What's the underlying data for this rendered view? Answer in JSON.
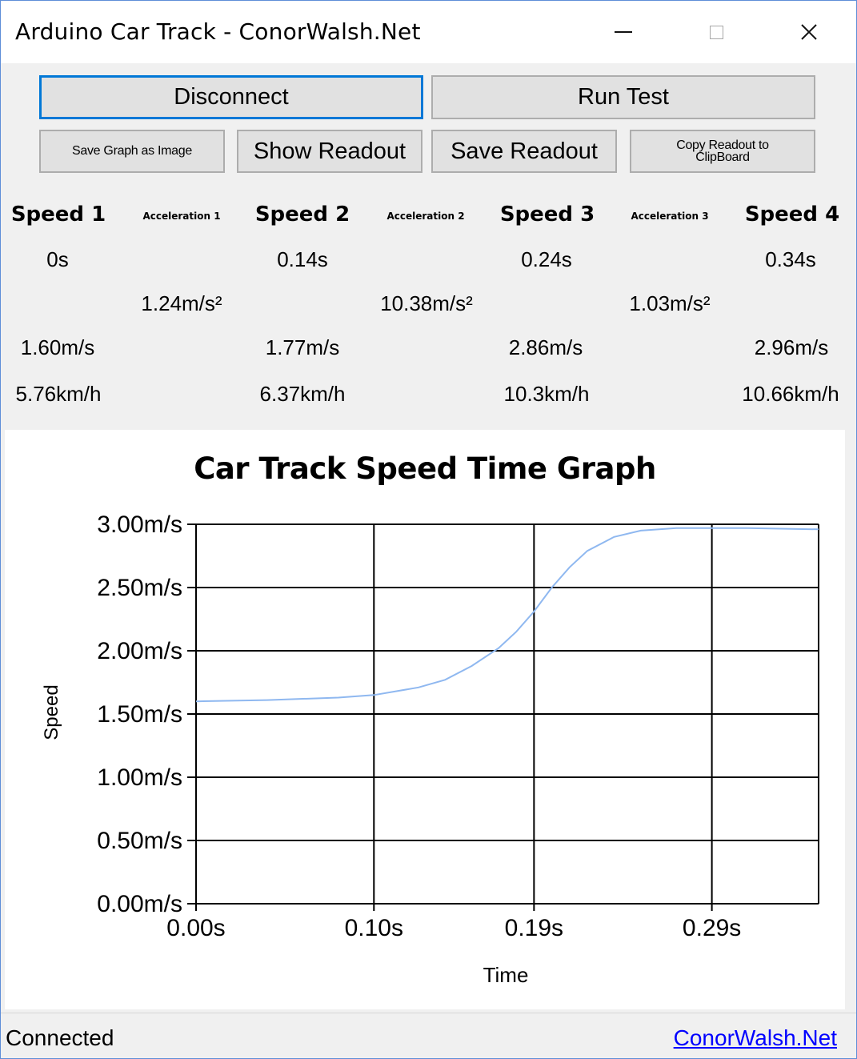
{
  "window": {
    "title": "Arduino Car Track - ConorWalsh.Net"
  },
  "buttons": {
    "disconnect": "Disconnect",
    "run_test": "Run Test",
    "save_graph": "Save Graph as Image",
    "show_readout": "Show Readout",
    "save_readout": "Save Readout",
    "copy_readout": "Copy Readout to ClipBoard"
  },
  "readout": {
    "speeds": [
      {
        "header": "Speed 1",
        "time": "0s",
        "ms": "1.60m/s",
        "kmh": "5.76km/h"
      },
      {
        "header": "Speed 2",
        "time": "0.14s",
        "ms": "1.77m/s",
        "kmh": "6.37km/h"
      },
      {
        "header": "Speed 3",
        "time": "0.24s",
        "ms": "2.86m/s",
        "kmh": "10.3km/h"
      },
      {
        "header": "Speed 4",
        "time": "0.34s",
        "ms": "2.96m/s",
        "kmh": "10.66km/h"
      }
    ],
    "accelerations": [
      {
        "header": "Acceleration 1",
        "value": "1.24m/s²"
      },
      {
        "header": "Acceleration 2",
        "value": "10.38m/s²"
      },
      {
        "header": "Acceleration 3",
        "value": "1.03m/s²"
      }
    ]
  },
  "chart_data": {
    "type": "line",
    "title": "Car Track Speed Time Graph",
    "xlabel": "Time",
    "ylabel": "Speed",
    "xlim": [
      0,
      0.35
    ],
    "ylim": [
      0,
      3
    ],
    "x_ticks": [
      0,
      0.1,
      0.19,
      0.29
    ],
    "x_tick_labels": [
      "0.00s",
      "0.10s",
      "0.19s",
      "0.29s"
    ],
    "y_ticks": [
      0,
      0.5,
      1,
      1.5,
      2,
      2.5,
      3
    ],
    "y_tick_labels": [
      "0.00m/s",
      "0.50m/s",
      "1.00m/s",
      "1.50m/s",
      "2.00m/s",
      "2.50m/s",
      "3.00m/s"
    ],
    "grid": true,
    "line_color": "#8fb8f0",
    "series": [
      {
        "x": [
          0,
          0.04,
          0.08,
          0.1,
          0.125,
          0.14,
          0.155,
          0.17,
          0.18,
          0.19,
          0.2,
          0.21,
          0.22,
          0.235,
          0.25,
          0.27,
          0.29,
          0.31,
          0.35
        ],
        "values": [
          1.6,
          1.61,
          1.63,
          1.65,
          1.71,
          1.77,
          1.88,
          2.02,
          2.15,
          2.31,
          2.5,
          2.66,
          2.79,
          2.9,
          2.95,
          2.97,
          2.97,
          2.97,
          2.96
        ]
      }
    ]
  },
  "status": {
    "text": "Connected",
    "link": "ConorWalsh.Net"
  }
}
